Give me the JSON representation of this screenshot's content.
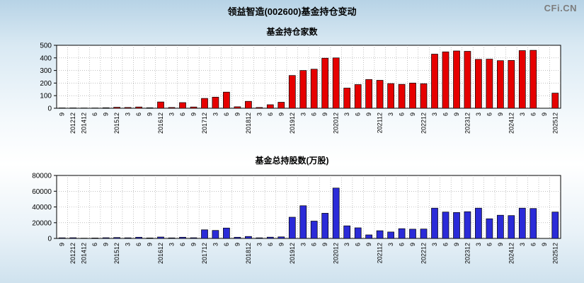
{
  "page": {
    "title": "领益智造(002600)基金持仓变动",
    "logo": "CFi.CN"
  },
  "colors": {
    "fund_count_bar": "#e60000",
    "fund_shares_bar": "#2b2bd8",
    "bar_outline": "#000000",
    "grid": "#999999",
    "plot_bg": "#ffffff"
  },
  "chart_data": [
    {
      "type": "bar",
      "title": "基金持仓家数",
      "bar_color": "#e60000",
      "ylim": [
        0,
        500
      ],
      "yticks": [
        0,
        100,
        200,
        300,
        400,
        500
      ],
      "grid": true,
      "categories": [
        "9",
        "201212",
        "201412",
        "6",
        "9",
        "201512",
        "3",
        "6",
        "9",
        "201612",
        "3",
        "6",
        "9",
        "201712",
        "3",
        "6",
        "9",
        "201812",
        "3",
        "6",
        "9",
        "201912",
        "3",
        "6",
        "9",
        "202012",
        "3",
        "6",
        "9",
        "202112",
        "3",
        "6",
        "9",
        "202212",
        "3",
        "6",
        "9",
        "202312",
        "3",
        "6",
        "9",
        "202412",
        "3",
        "6",
        "9",
        "202512"
      ],
      "values": [
        3,
        3,
        2,
        2,
        4,
        8,
        6,
        10,
        4,
        50,
        6,
        45,
        10,
        78,
        88,
        128,
        12,
        55,
        6,
        28,
        48,
        260,
        300,
        310,
        398,
        400,
        160,
        188,
        228,
        222,
        196,
        190,
        200,
        195,
        430,
        448,
        455,
        452,
        388,
        390,
        378,
        380,
        458,
        460,
        0,
        120
      ]
    },
    {
      "type": "bar",
      "title": "基金总持股数(万股)",
      "bar_color": "#2b2bd8",
      "ylim": [
        0,
        80000
      ],
      "yticks": [
        0,
        20000,
        40000,
        60000,
        80000
      ],
      "grid": true,
      "categories": [
        "9",
        "201212",
        "201412",
        "6",
        "9",
        "201512",
        "3",
        "6",
        "9",
        "201612",
        "3",
        "6",
        "9",
        "201712",
        "3",
        "6",
        "9",
        "201812",
        "3",
        "6",
        "9",
        "201912",
        "3",
        "6",
        "9",
        "202012",
        "3",
        "6",
        "9",
        "202112",
        "3",
        "6",
        "9",
        "202212",
        "3",
        "6",
        "9",
        "202312",
        "3",
        "6",
        "9",
        "202412",
        "3",
        "6",
        "9",
        "202512"
      ],
      "values": [
        800,
        900,
        400,
        500,
        900,
        1200,
        800,
        1500,
        600,
        1800,
        700,
        1500,
        900,
        11000,
        10200,
        13200,
        1500,
        2500,
        800,
        1600,
        2000,
        27000,
        41500,
        22000,
        32000,
        64000,
        16000,
        13500,
        4500,
        9800,
        8200,
        12400,
        11800,
        12000,
        38500,
        33500,
        33000,
        34000,
        38500,
        25000,
        29500,
        29000,
        38500,
        38000,
        0,
        33500
      ]
    }
  ]
}
